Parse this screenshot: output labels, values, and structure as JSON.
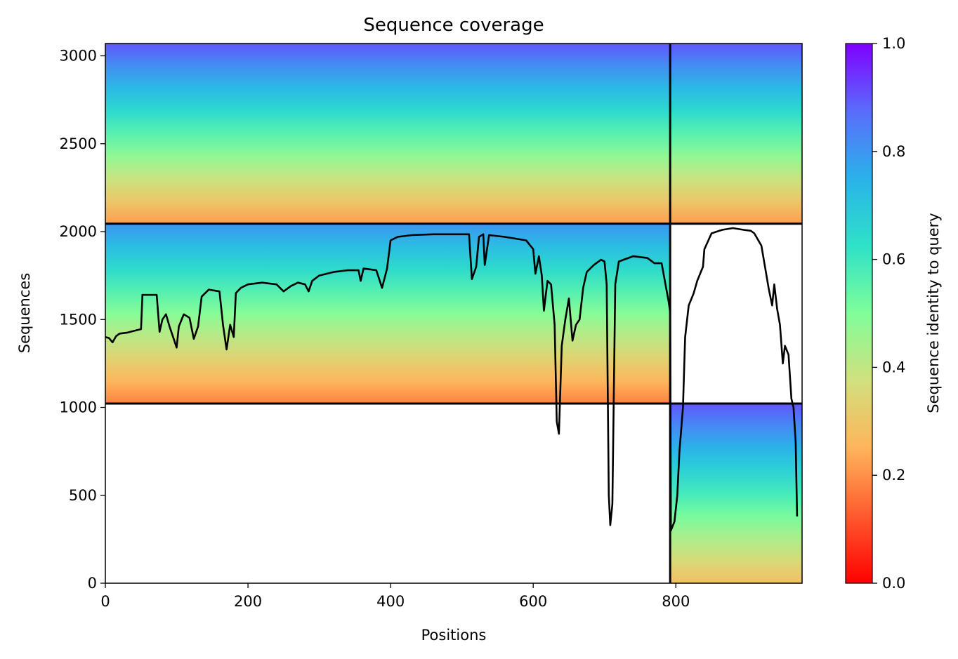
{
  "chart_data": {
    "type": "heatmap",
    "title": "Sequence coverage",
    "xlabel": "Positions",
    "ylabel": "Sequences",
    "xlim": [
      0,
      977
    ],
    "ylim": [
      0,
      3070
    ],
    "x_ticks": [
      "0",
      "200",
      "400",
      "600",
      "800"
    ],
    "y_ticks": [
      "0",
      "500",
      "1000",
      "1500",
      "2000",
      "2500",
      "3000"
    ],
    "colorbar": {
      "label": "Sequence identity to query",
      "range": [
        0,
        1
      ],
      "ticks": [
        "0.0",
        "0.2",
        "0.4",
        "0.6",
        "0.8",
        "1.0"
      ],
      "colormap": "rainbow_r"
    },
    "block_boundaries": {
      "position_split": 792,
      "sequence_splits": [
        1022,
        2045
      ]
    },
    "coverage_blocks": [
      {
        "x": [
          0,
          792
        ],
        "y": [
          2045,
          3070
        ],
        "identity_top": 0.9,
        "identity_bottom": 0.22
      },
      {
        "x": [
          792,
          977
        ],
        "y": [
          2045,
          3070
        ],
        "identity_top": 0.9,
        "identity_bottom": 0.22
      },
      {
        "x": [
          0,
          792
        ],
        "y": [
          1022,
          2045
        ],
        "identity_top": 0.8,
        "identity_bottom": 0.18
      },
      {
        "x": [
          792,
          977
        ],
        "y": [
          0,
          1022
        ],
        "identity_top": 0.9,
        "identity_bottom": 0.28
      }
    ],
    "series": [
      {
        "type": "line",
        "color": "#000000",
        "points": [
          [
            0,
            1400
          ],
          [
            5,
            1395
          ],
          [
            10,
            1370
          ],
          [
            15,
            1405
          ],
          [
            20,
            1420
          ],
          [
            30,
            1425
          ],
          [
            40,
            1435
          ],
          [
            50,
            1445
          ],
          [
            52,
            1640
          ],
          [
            72,
            1640
          ],
          [
            76,
            1430
          ],
          [
            80,
            1500
          ],
          [
            85,
            1530
          ],
          [
            90,
            1460
          ],
          [
            95,
            1400
          ],
          [
            100,
            1340
          ],
          [
            103,
            1460
          ],
          [
            110,
            1530
          ],
          [
            118,
            1510
          ],
          [
            124,
            1390
          ],
          [
            130,
            1460
          ],
          [
            135,
            1630
          ],
          [
            145,
            1670
          ],
          [
            160,
            1660
          ],
          [
            165,
            1470
          ],
          [
            170,
            1330
          ],
          [
            175,
            1470
          ],
          [
            180,
            1400
          ],
          [
            183,
            1650
          ],
          [
            190,
            1680
          ],
          [
            200,
            1700
          ],
          [
            220,
            1710
          ],
          [
            240,
            1700
          ],
          [
            250,
            1660
          ],
          [
            260,
            1690
          ],
          [
            270,
            1710
          ],
          [
            280,
            1700
          ],
          [
            285,
            1660
          ],
          [
            290,
            1720
          ],
          [
            300,
            1750
          ],
          [
            320,
            1770
          ],
          [
            340,
            1780
          ],
          [
            355,
            1780
          ],
          [
            358,
            1720
          ],
          [
            362,
            1790
          ],
          [
            380,
            1780
          ],
          [
            388,
            1680
          ],
          [
            395,
            1790
          ],
          [
            400,
            1950
          ],
          [
            410,
            1970
          ],
          [
            430,
            1980
          ],
          [
            460,
            1985
          ],
          [
            500,
            1985
          ],
          [
            510,
            1985
          ],
          [
            514,
            1730
          ],
          [
            520,
            1800
          ],
          [
            524,
            1970
          ],
          [
            530,
            1985
          ],
          [
            532,
            1810
          ],
          [
            538,
            1980
          ],
          [
            560,
            1970
          ],
          [
            590,
            1950
          ],
          [
            600,
            1900
          ],
          [
            603,
            1760
          ],
          [
            608,
            1860
          ],
          [
            612,
            1750
          ],
          [
            615,
            1550
          ],
          [
            620,
            1720
          ],
          [
            625,
            1700
          ],
          [
            630,
            1470
          ],
          [
            633,
            920
          ],
          [
            636,
            850
          ],
          [
            640,
            1350
          ],
          [
            645,
            1500
          ],
          [
            650,
            1620
          ],
          [
            655,
            1380
          ],
          [
            660,
            1470
          ],
          [
            665,
            1500
          ],
          [
            670,
            1680
          ],
          [
            675,
            1770
          ],
          [
            685,
            1810
          ],
          [
            695,
            1840
          ],
          [
            700,
            1830
          ],
          [
            703,
            1700
          ],
          [
            706,
            500
          ],
          [
            708,
            330
          ],
          [
            711,
            450
          ],
          [
            715,
            1700
          ],
          [
            720,
            1830
          ],
          [
            740,
            1860
          ],
          [
            760,
            1850
          ],
          [
            770,
            1820
          ],
          [
            780,
            1820
          ],
          [
            790,
            1600
          ],
          [
            792,
            1540
          ],
          [
            793,
            300
          ],
          [
            798,
            350
          ],
          [
            802,
            500
          ],
          [
            805,
            750
          ],
          [
            810,
            1000
          ],
          [
            813,
            1400
          ],
          [
            818,
            1580
          ],
          [
            825,
            1650
          ],
          [
            830,
            1720
          ],
          [
            838,
            1800
          ],
          [
            840,
            1900
          ],
          [
            850,
            1990
          ],
          [
            865,
            2010
          ],
          [
            880,
            2020
          ],
          [
            895,
            2010
          ],
          [
            905,
            2005
          ],
          [
            910,
            1990
          ],
          [
            920,
            1920
          ],
          [
            925,
            1800
          ],
          [
            930,
            1680
          ],
          [
            935,
            1580
          ],
          [
            938,
            1700
          ],
          [
            942,
            1560
          ],
          [
            946,
            1470
          ],
          [
            950,
            1250
          ],
          [
            953,
            1350
          ],
          [
            958,
            1300
          ],
          [
            962,
            1050
          ],
          [
            965,
            1000
          ],
          [
            968,
            800
          ],
          [
            970,
            380
          ]
        ]
      }
    ]
  }
}
